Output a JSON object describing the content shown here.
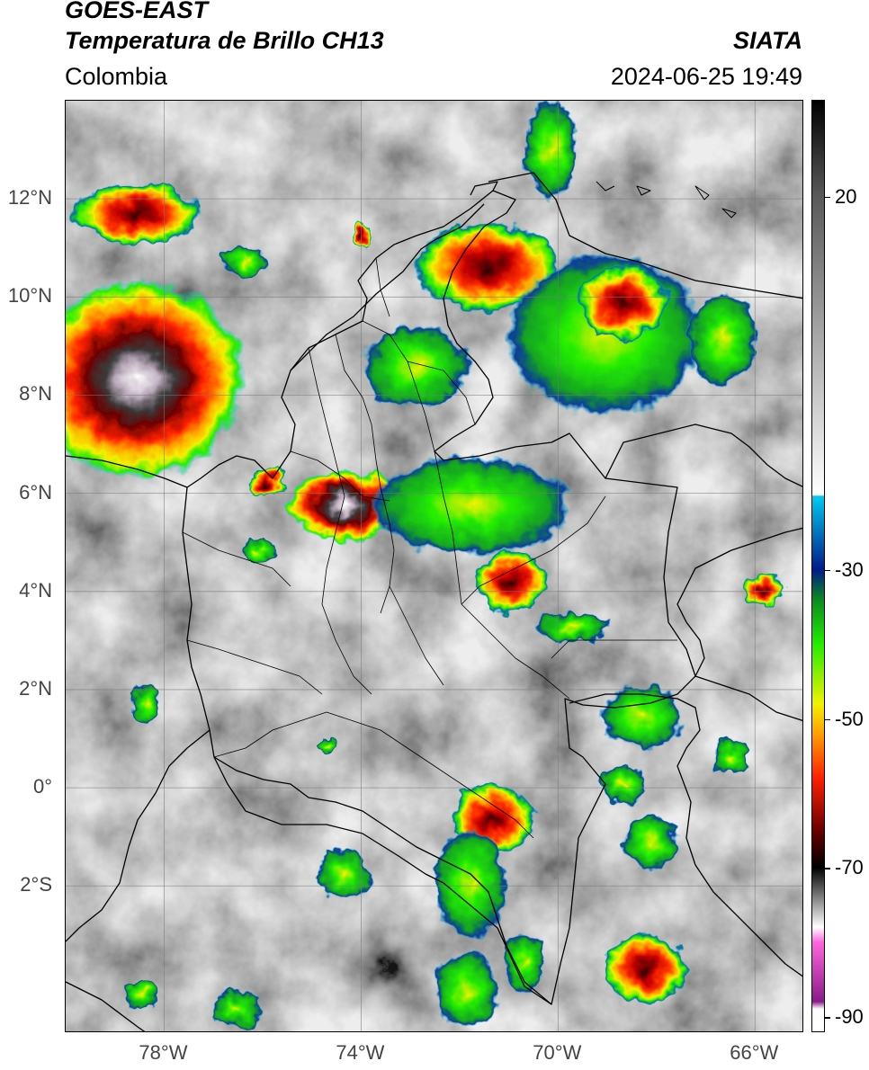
{
  "header": {
    "satellite": "GOES-EAST",
    "product": "Temperatura de Brillo CH13",
    "region": "Colombia",
    "agency": "SIATA",
    "datetime": "2024-06-25 19:49"
  },
  "axes": {
    "lat_ticks": [
      "12°N",
      "10°N",
      "8°N",
      "6°N",
      "4°N",
      "2°N",
      "0°",
      "2°S"
    ],
    "lon_ticks": [
      "78°W",
      "74°W",
      "70°W",
      "66°W"
    ],
    "lat_values": [
      12,
      10,
      8,
      6,
      4,
      2,
      0,
      -2
    ],
    "lon_values": [
      -78,
      -74,
      -70,
      -66
    ],
    "lat_range": [
      -5,
      14
    ],
    "lon_range": [
      -80,
      -65
    ]
  },
  "colorbar": {
    "labels": [
      "20",
      "-30",
      "-50",
      "-70",
      "-90"
    ],
    "values": [
      20,
      -30,
      -50,
      -70,
      -90
    ],
    "range": [
      -92,
      33
    ],
    "stops": [
      {
        "v": 33,
        "c": "#000000"
      },
      {
        "v": 20,
        "c": "#5a5a5a"
      },
      {
        "v": -20,
        "c": "#ffffff"
      },
      {
        "v": -20.1,
        "c": "#00ccee"
      },
      {
        "v": -30,
        "c": "#001b8a"
      },
      {
        "v": -34,
        "c": "#0a8a20"
      },
      {
        "v": -40,
        "c": "#22ee00"
      },
      {
        "v": -48,
        "c": "#f2f200"
      },
      {
        "v": -52,
        "c": "#ffa000"
      },
      {
        "v": -58,
        "c": "#ff2000"
      },
      {
        "v": -65,
        "c": "#6a0000"
      },
      {
        "v": -70,
        "c": "#000000"
      },
      {
        "v": -78,
        "c": "#ffffff"
      },
      {
        "v": -80,
        "c": "#ff66dd"
      },
      {
        "v": -88,
        "c": "#8a1a8a"
      },
      {
        "v": -89,
        "c": "#ffffff"
      },
      {
        "v": -92,
        "c": "#ffffff"
      }
    ]
  },
  "colors": {
    "frame": "#000000",
    "grid": "#7a7a7a",
    "borders": "#000000"
  }
}
